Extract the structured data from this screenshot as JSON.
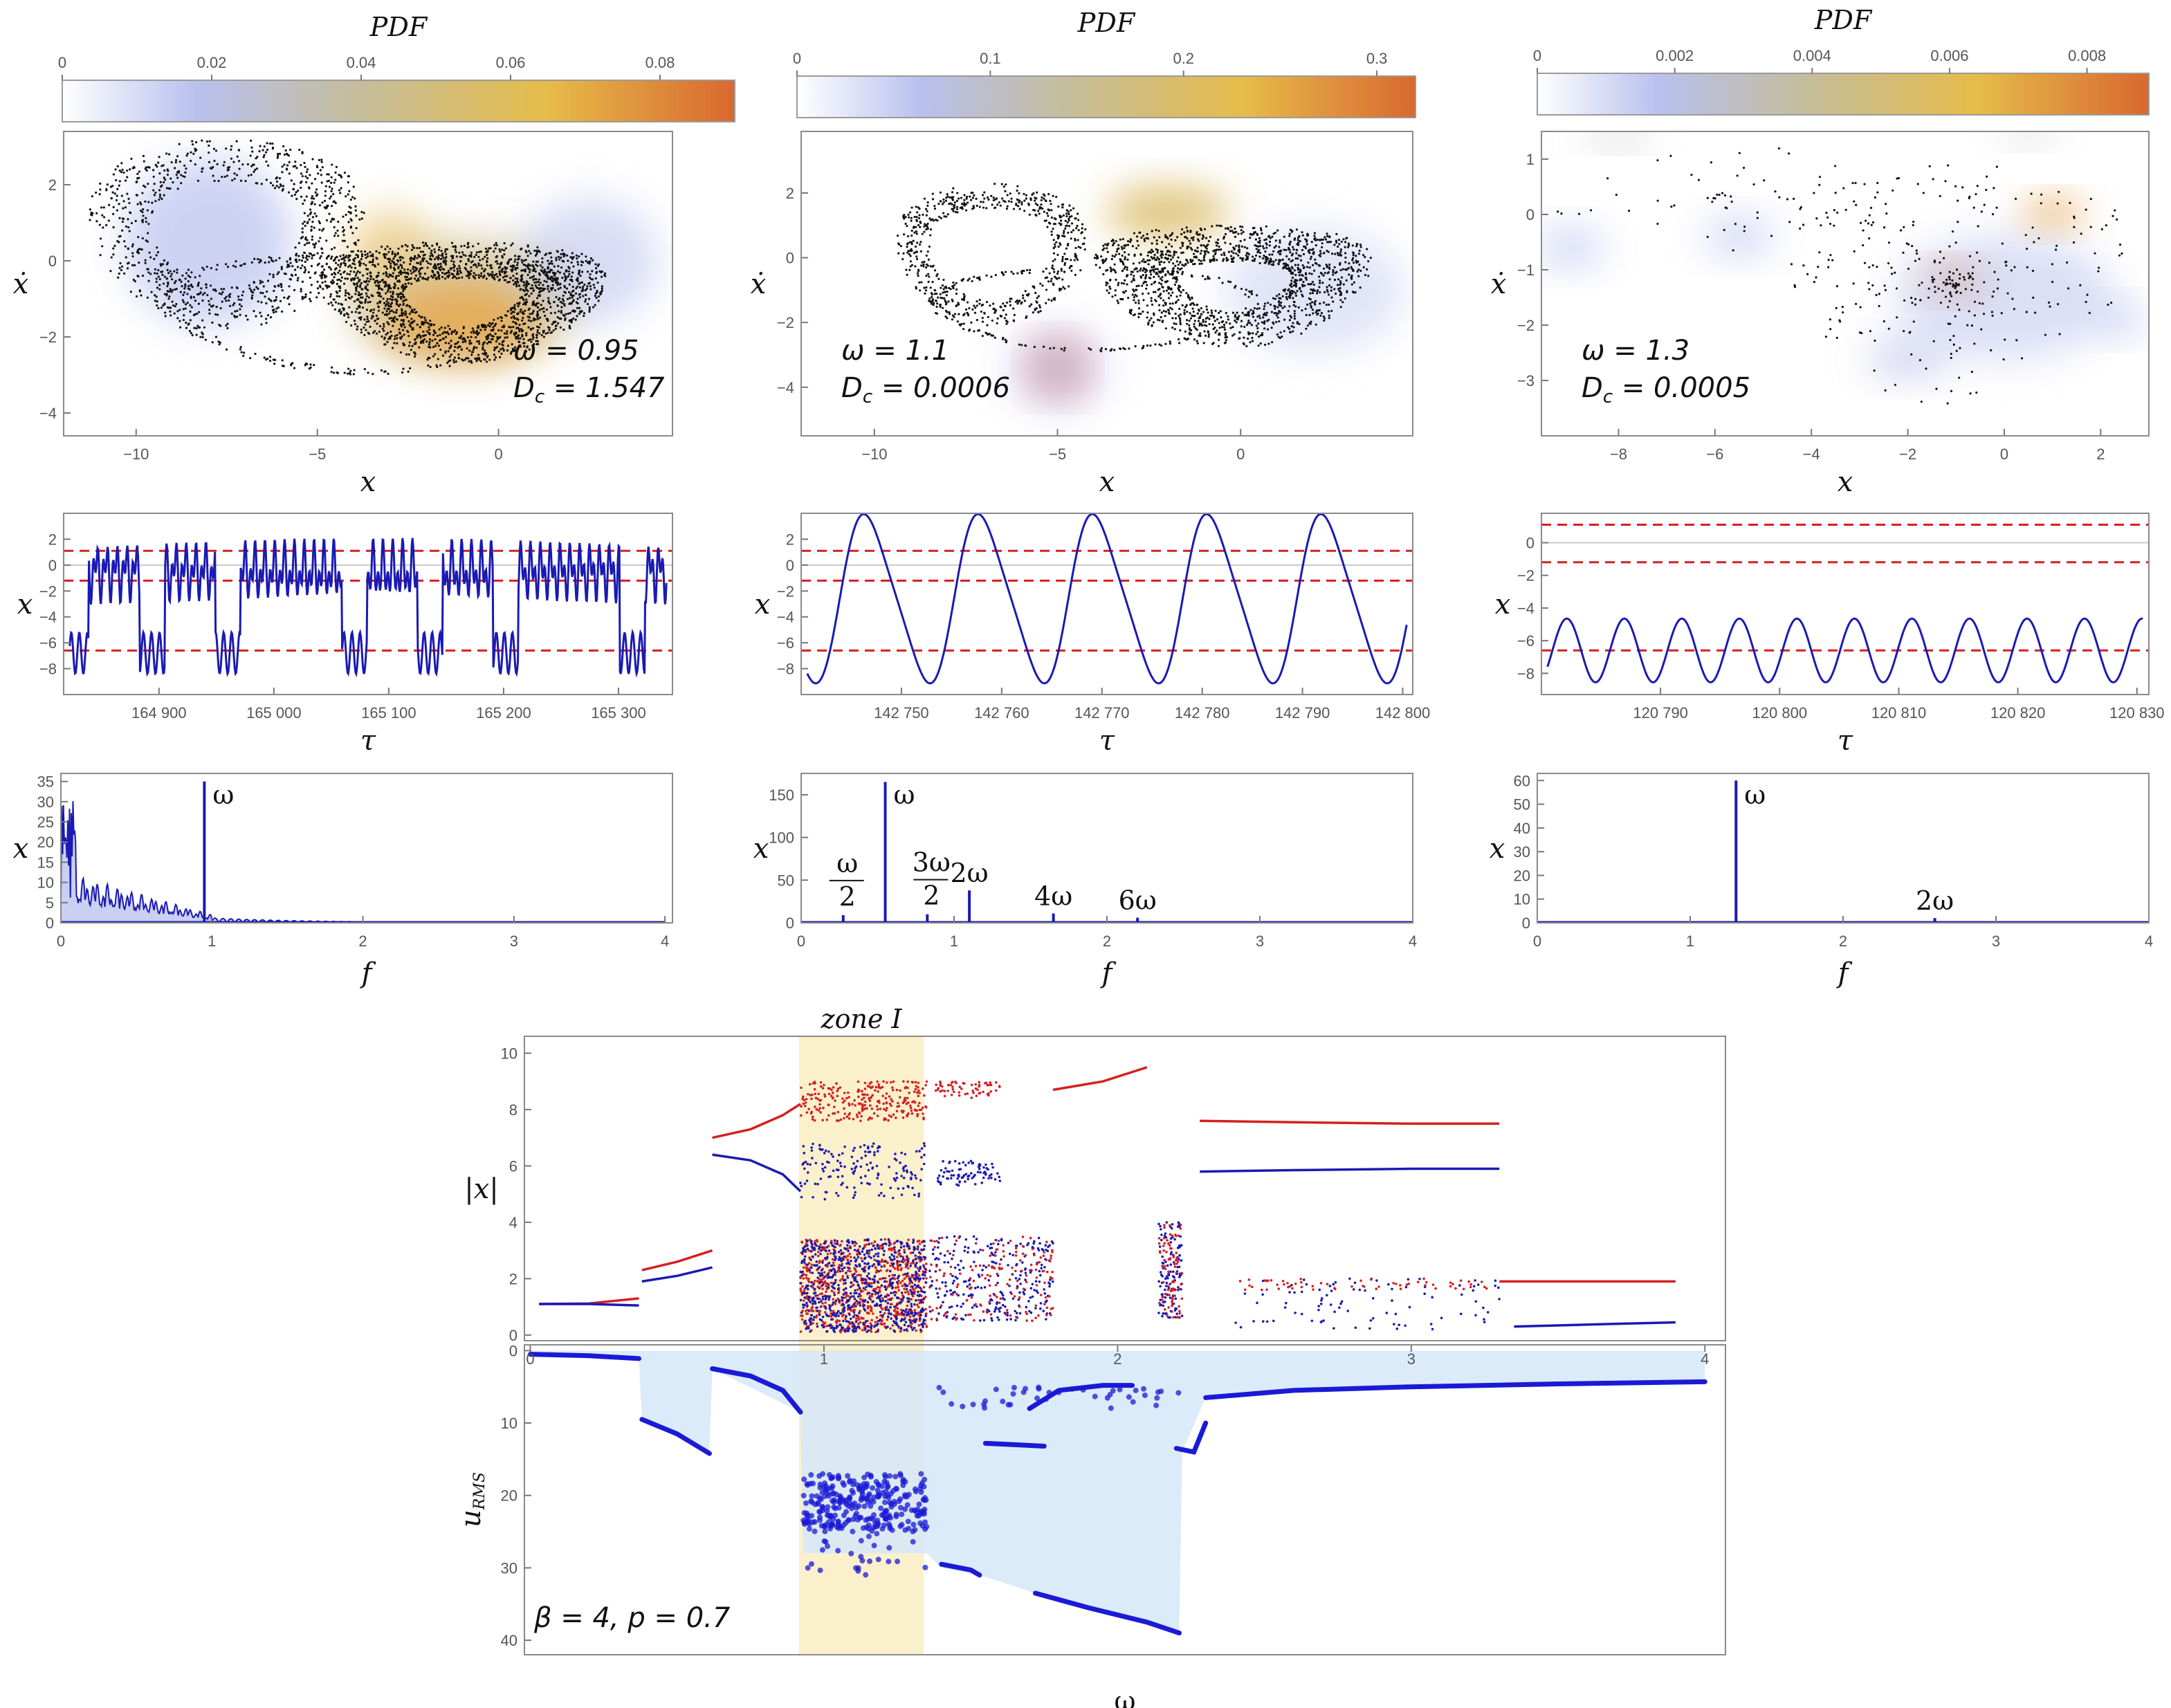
{
  "colors": {
    "trace": "#1a1ab4",
    "threshold": "#d42020",
    "branch_red": "#d42020",
    "branch_blue": "#1a1ab4",
    "rms_fill": "#d6e8f8",
    "rms_points": "#1a1ad6",
    "zone": "#fbf0cc",
    "pdf_gradient": [
      "#ffffff",
      "#b8c0ee",
      "#c6bd98",
      "#e6bc4a",
      "#d9682f"
    ]
  },
  "chart_data": [
    {
      "id": "pdf_colorbar_1",
      "type": "heatmap",
      "title": "PDF",
      "range": [
        0,
        0.09
      ],
      "ticks": [
        "0",
        "0.02",
        "0.04",
        "0.06",
        "0.08"
      ],
      "tick_values": [
        0,
        0.02,
        0.04,
        0.06,
        0.08
      ]
    },
    {
      "id": "pdf_colorbar_2",
      "type": "heatmap",
      "title": "PDF",
      "range": [
        0,
        0.32
      ],
      "ticks": [
        "0",
        "0.1",
        "0.2",
        "0.3"
      ],
      "tick_values": [
        0,
        0.1,
        0.2,
        0.3
      ]
    },
    {
      "id": "pdf_colorbar_3",
      "type": "heatmap",
      "title": "PDF",
      "range": [
        0,
        0.0089
      ],
      "ticks": [
        "0",
        "0.002",
        "0.004",
        "0.006",
        "0.008"
      ],
      "tick_values": [
        0,
        0.002,
        0.004,
        0.006,
        0.008
      ]
    },
    {
      "id": "phase_1",
      "type": "scatter",
      "xlabel": "x",
      "ylabel": "ẋ",
      "xlim": [
        -12,
        4.8
      ],
      "ylim": [
        -4.6,
        3.4
      ],
      "xticks": [
        "−10",
        "−5",
        "0"
      ],
      "xtick_values": [
        -10,
        -5,
        0
      ],
      "yticks": [
        "2",
        "0",
        "−2",
        "−4"
      ],
      "ytick_values": [
        2,
        0,
        -2,
        -4
      ],
      "annotation_omega": "ω = 0.95",
      "annotation_dc": "Dc = 1.547",
      "dc_main": "D",
      "dc_sub": "c",
      "dc_value": " = 1.547"
    },
    {
      "id": "phase_2",
      "type": "scatter",
      "xlabel": "x",
      "ylabel": "ẋ",
      "xlim": [
        -12,
        4.7
      ],
      "ylim": [
        -5.5,
        3.9
      ],
      "xticks": [
        "−10",
        "−5",
        "0"
      ],
      "xtick_values": [
        -10,
        -5,
        0
      ],
      "yticks": [
        "2",
        "0",
        "−2",
        "−4"
      ],
      "ytick_values": [
        2,
        0,
        -2,
        -4
      ],
      "annotation_omega": "ω = 1.1",
      "annotation_dc": "Dc = 0.0006",
      "dc_main": "D",
      "dc_sub": "c",
      "dc_value": " = 0.0006"
    },
    {
      "id": "phase_3",
      "type": "scatter",
      "xlabel": "x",
      "ylabel": "ẋ",
      "xlim": [
        -9.6,
        3
      ],
      "ylim": [
        -4,
        1.5
      ],
      "xticks": [
        "−8",
        "−6",
        "−4",
        "−2",
        "0",
        "2"
      ],
      "xtick_values": [
        -8,
        -6,
        -4,
        -2,
        0,
        2
      ],
      "yticks": [
        "1",
        "0",
        "−1",
        "−2",
        "−3"
      ],
      "ytick_values": [
        1,
        0,
        -1,
        -2,
        -3
      ],
      "annotation_omega": "ω = 1.3",
      "annotation_dc": "Dc = 0.0005",
      "dc_main": "D",
      "dc_sub": "c",
      "dc_value": " = 0.0005"
    },
    {
      "id": "time_1",
      "type": "line",
      "xlabel": "τ",
      "ylabel": "x",
      "xlim": [
        164817,
        165347
      ],
      "ylim": [
        -10,
        4
      ],
      "xticks": [
        "164 900",
        "165 000",
        "165 100",
        "165 200",
        "165 300"
      ],
      "xtick_values": [
        164900,
        165000,
        165100,
        165200,
        165300
      ],
      "yticks": [
        "2",
        "0",
        "−2",
        "−4",
        "−6",
        "−8"
      ],
      "ytick_values": [
        2,
        0,
        -2,
        -4,
        -6,
        -8
      ],
      "thresholds": [
        1.1,
        -1.2,
        -6.6
      ]
    },
    {
      "id": "time_2",
      "type": "line",
      "xlabel": "τ",
      "ylabel": "x",
      "xlim": [
        142740,
        142801
      ],
      "ylim": [
        -10,
        4
      ],
      "xticks": [
        "142 750",
        "142 760",
        "142 770",
        "142 780",
        "142 790",
        "142 800"
      ],
      "xtick_values": [
        142750,
        142760,
        142770,
        142780,
        142790,
        142800
      ],
      "yticks": [
        "2",
        "0",
        "−2",
        "−4",
        "−6",
        "−8"
      ],
      "ytick_values": [
        2,
        0,
        -2,
        -4,
        -6,
        -8
      ],
      "thresholds": [
        1.1,
        -1.2,
        -6.6
      ]
    },
    {
      "id": "time_3",
      "type": "line",
      "xlabel": "τ",
      "ylabel": "x",
      "xlim": [
        120780,
        120831
      ],
      "ylim": [
        -9.3,
        1.8
      ],
      "xticks": [
        "120 790",
        "120 800",
        "120 810",
        "120 820",
        "120 830"
      ],
      "xtick_values": [
        120790,
        120800,
        120810,
        120820,
        120830
      ],
      "yticks": [
        "0",
        "−2",
        "−4",
        "−6",
        "−8"
      ],
      "ytick_values": [
        0,
        -2,
        -4,
        -6,
        -8
      ],
      "thresholds": [
        1.1,
        -1.2,
        -6.6
      ]
    },
    {
      "id": "spectrum_1",
      "type": "line",
      "xlabel": "f",
      "ylabel": "x",
      "xlim": [
        0,
        4.05
      ],
      "ylim": [
        0,
        37
      ],
      "xticks": [
        "0",
        "1",
        "2",
        "3",
        "4"
      ],
      "xtick_values": [
        0,
        1,
        2,
        3,
        4
      ],
      "yticks": [
        "35",
        "30",
        "25",
        "20",
        "15",
        "10",
        "5",
        "0"
      ],
      "ytick_values": [
        35,
        30,
        25,
        20,
        15,
        10,
        5,
        0
      ],
      "peaks": [
        {
          "f": 0.95,
          "amp": 35,
          "label": "ω"
        }
      ]
    },
    {
      "id": "spectrum_2",
      "type": "line",
      "xlabel": "f",
      "ylabel": "x",
      "xlim": [
        0,
        4
      ],
      "ylim": [
        0,
        175
      ],
      "xticks": [
        "0",
        "1",
        "2",
        "3",
        "4"
      ],
      "xtick_values": [
        0,
        1,
        2,
        3,
        4
      ],
      "yticks": [
        "150",
        "100",
        "50",
        "0"
      ],
      "ytick_values": [
        150,
        100,
        50,
        0
      ],
      "peaks": [
        {
          "f": 0.275,
          "amp": 9,
          "label": "ω/2",
          "fraction": true,
          "num": "ω",
          "den": "2"
        },
        {
          "f": 0.55,
          "amp": 165,
          "label": "ω"
        },
        {
          "f": 0.825,
          "amp": 10,
          "label": "3ω/2",
          "fraction": true,
          "num": "3ω",
          "den": "2"
        },
        {
          "f": 1.1,
          "amp": 38,
          "label": "2ω"
        },
        {
          "f": 1.65,
          "amp": 11,
          "label": "4ω"
        },
        {
          "f": 2.2,
          "amp": 6,
          "label": "6ω"
        }
      ]
    },
    {
      "id": "spectrum_3",
      "type": "line",
      "xlabel": "f",
      "ylabel": "x",
      "xlim": [
        0,
        4
      ],
      "ylim": [
        0,
        63
      ],
      "xticks": [
        "0",
        "1",
        "2",
        "3",
        "4"
      ],
      "xtick_values": [
        0,
        1,
        2,
        3,
        4
      ],
      "yticks": [
        "60",
        "50",
        "40",
        "30",
        "20",
        "10",
        "0"
      ],
      "ytick_values": [
        60,
        50,
        40,
        30,
        20,
        10,
        0
      ],
      "peaks": [
        {
          "f": 1.3,
          "amp": 60,
          "label": "ω"
        },
        {
          "f": 2.6,
          "amp": 2,
          "label": "2ω"
        }
      ]
    },
    {
      "id": "bifurcation",
      "type": "scatter",
      "xlabel": "",
      "ylabel": "|x|",
      "xlim": [
        -0.02,
        4.07
      ],
      "ylim": [
        -0.2,
        10.6
      ],
      "yticks": [
        "10",
        "8",
        "6",
        "4",
        "2",
        "0"
      ],
      "ytick_values": [
        10,
        8,
        6,
        4,
        2,
        0
      ],
      "zone": {
        "label": "zone I",
        "omega_range": [
          0.915,
          1.34
        ]
      },
      "branches": [
        {
          "color": "red",
          "points": [
            [
              0.03,
              1.1
            ],
            [
              0.2,
              1.12
            ],
            [
              0.37,
              1.3
            ]
          ]
        },
        {
          "color": "blue",
          "points": [
            [
              0.03,
              1.1
            ],
            [
              0.2,
              1.1
            ],
            [
              0.37,
              1.05
            ]
          ]
        },
        {
          "color": "red",
          "points": [
            [
              0.38,
              2.3
            ],
            [
              0.5,
              2.6
            ],
            [
              0.62,
              3.0
            ]
          ]
        },
        {
          "color": "blue",
          "points": [
            [
              0.38,
              1.9
            ],
            [
              0.5,
              2.1
            ],
            [
              0.62,
              2.4
            ]
          ]
        },
        {
          "color": "red",
          "points": [
            [
              0.62,
              7.0
            ],
            [
              0.75,
              7.3
            ],
            [
              0.86,
              7.8
            ],
            [
              0.92,
              8.2
            ]
          ]
        },
        {
          "color": "blue",
          "points": [
            [
              0.62,
              6.4
            ],
            [
              0.75,
              6.2
            ],
            [
              0.86,
              5.7
            ],
            [
              0.92,
              5.1
            ]
          ]
        },
        {
          "color": "red",
          "points": [
            [
              1.78,
              8.7
            ],
            [
              1.95,
              9.0
            ],
            [
              2.1,
              9.5
            ]
          ]
        },
        {
          "color": "red",
          "points": [
            [
              2.28,
              7.6
            ],
            [
              2.6,
              7.55
            ],
            [
              3.0,
              7.5
            ],
            [
              3.3,
              7.5
            ]
          ]
        },
        {
          "color": "blue",
          "points": [
            [
              2.28,
              5.8
            ],
            [
              2.6,
              5.85
            ],
            [
              3.0,
              5.9
            ],
            [
              3.3,
              5.9
            ]
          ]
        },
        {
          "color": "red",
          "points": [
            [
              3.3,
              1.9
            ],
            [
              3.7,
              1.9
            ],
            [
              3.9,
              1.9
            ]
          ]
        },
        {
          "color": "blue",
          "points": [
            [
              3.35,
              0.3
            ],
            [
              3.7,
              0.4
            ],
            [
              3.9,
              0.45
            ]
          ]
        }
      ]
    },
    {
      "id": "rms",
      "type": "area",
      "xlabel": "ω",
      "ylabel": "uRMS",
      "ylabel_main": "u",
      "ylabel_sub": "RMS",
      "xlim": [
        -0.02,
        4.07
      ],
      "ylim": [
        -0.8,
        42
      ],
      "xticks": [
        "0",
        "1",
        "2",
        "3",
        "4"
      ],
      "xtick_values": [
        0,
        1,
        2,
        3,
        4
      ],
      "yticks": [
        "0",
        "10",
        "20",
        "30",
        "40"
      ],
      "ytick_values": [
        0,
        10,
        20,
        30,
        40
      ],
      "annotation": "β = 4, p = 0.7",
      "segments": [
        {
          "name": "branch-1",
          "x": [
            0.0,
            0.2,
            0.37
          ],
          "y": [
            0.5,
            0.7,
            1.1
          ]
        },
        {
          "name": "branch-2",
          "x": [
            0.38,
            0.5,
            0.61
          ],
          "y": [
            9.5,
            11.5,
            14.2
          ]
        },
        {
          "name": "branch-3",
          "x": [
            0.62,
            0.75,
            0.86,
            0.92
          ],
          "y": [
            2.5,
            3.5,
            5.5,
            8.5
          ]
        },
        {
          "name": "branch-4",
          "x": [
            1.4,
            1.5,
            1.53
          ],
          "y": [
            29.5,
            30.3,
            31.0
          ]
        },
        {
          "name": "branch-5",
          "x": [
            1.55,
            1.65,
            1.75
          ],
          "y": [
            12.8,
            13.0,
            13.2
          ]
        },
        {
          "name": "branch-6",
          "x": [
            1.7,
            1.8,
            1.95,
            2.05
          ],
          "y": [
            8.0,
            5.5,
            4.8,
            4.8
          ]
        },
        {
          "name": "branch-7",
          "x": [
            1.72,
            1.9,
            2.1,
            2.21
          ],
          "y": [
            33.5,
            35.5,
            37.5,
            39.0
          ]
        },
        {
          "name": "branch-8",
          "x": [
            2.2,
            2.26,
            2.3
          ],
          "y": [
            13.5,
            14.0,
            10.0
          ]
        },
        {
          "name": "branch-9",
          "x": [
            2.3,
            2.6,
            3.0,
            3.5,
            4.0
          ],
          "y": [
            6.5,
            5.5,
            5.0,
            4.6,
            4.3
          ]
        }
      ]
    }
  ]
}
